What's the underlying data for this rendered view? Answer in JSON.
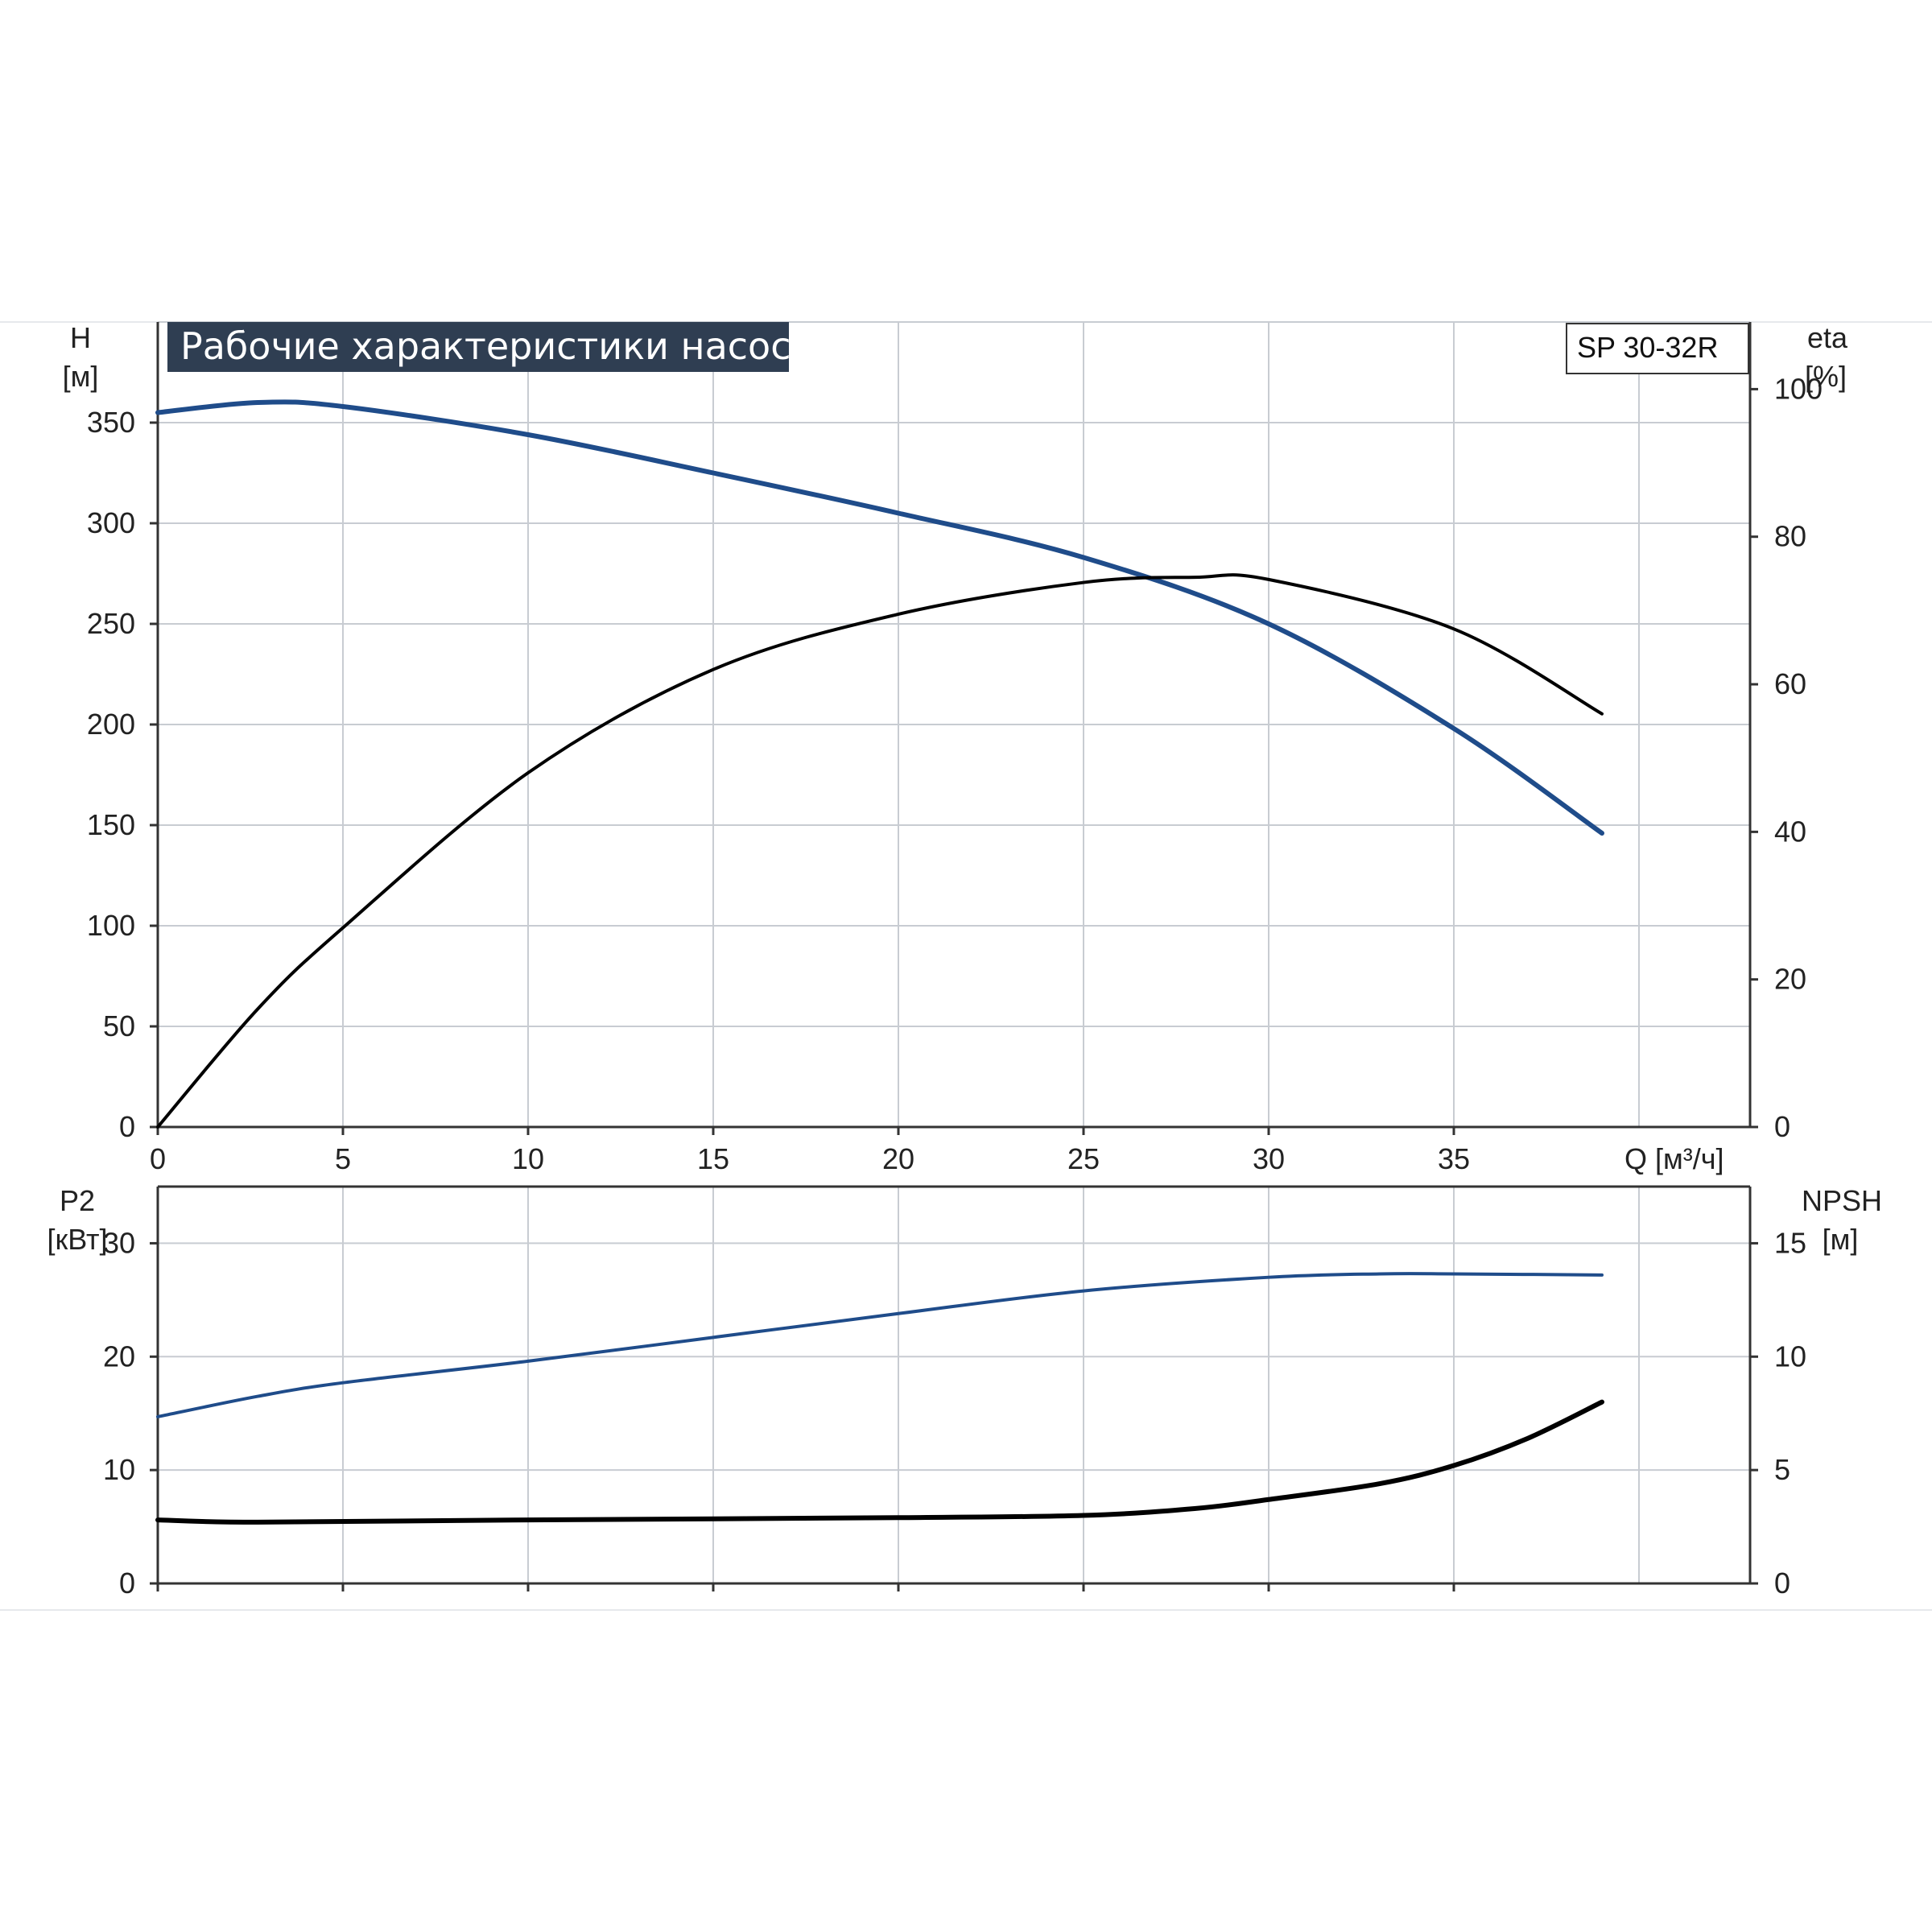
{
  "title": "Рабочие характеристики насоса",
  "model": "SP 30-32R",
  "colors": {
    "title_bg": "#2f3e52",
    "grid": "#c8ccd2",
    "axis": "#333333",
    "blue_curve": "#1f4c8a",
    "black_curve": "#000000"
  },
  "chart_data": [
    {
      "type": "line",
      "panel": "top",
      "x_axis": {
        "label": "Q [м³/ч]",
        "range": [
          0,
          43
        ],
        "ticks": [
          0,
          5,
          10,
          15,
          20,
          25,
          30,
          35
        ],
        "tick_labels": [
          "0",
          "5",
          "10",
          "15",
          "20",
          "25",
          "30",
          "35"
        ]
      },
      "y_left": {
        "label": "H",
        "unit": "[м]",
        "range": [
          0,
          400
        ],
        "ticks": [
          0,
          50,
          100,
          150,
          200,
          250,
          300,
          350
        ],
        "tick_labels": [
          "0",
          "50",
          "100",
          "150",
          "200",
          "250",
          "300",
          "350"
        ]
      },
      "y_right": {
        "label": "eta",
        "unit": "[%]",
        "range": [
          0,
          109.1
        ],
        "ticks": [
          0,
          20,
          40,
          60,
          80,
          100
        ],
        "tick_labels": [
          "0",
          "20",
          "40",
          "60",
          "80",
          "100"
        ]
      },
      "grid": true,
      "series": [
        {
          "key": "H",
          "axis": "left",
          "color": "#1f4c8a",
          "x": [
            0,
            2.7,
            5,
            10,
            15,
            20,
            25,
            30,
            35,
            39
          ],
          "y": [
            355,
            360,
            358,
            344,
            325,
            305,
            283,
            250,
            198,
            146
          ]
        },
        {
          "key": "eta",
          "axis": "right",
          "color": "#000000",
          "x": [
            0,
            2.7,
            5,
            10,
            15,
            20,
            25,
            28,
            30,
            35,
            39
          ],
          "y": [
            0,
            16,
            27,
            48,
            62,
            69.5,
            73.8,
            74.5,
            74.2,
            67.5,
            56
          ]
        }
      ]
    },
    {
      "type": "line",
      "panel": "bottom",
      "x_axis": {
        "range": [
          0,
          43
        ],
        "ticks": [
          0,
          5,
          10,
          15,
          20,
          25,
          30,
          35
        ]
      },
      "y_left": {
        "label": "P2",
        "unit": "[кВт]",
        "range": [
          0,
          35
        ],
        "ticks": [
          0,
          10,
          20,
          30
        ],
        "tick_labels": [
          "0",
          "10",
          "20",
          "30"
        ]
      },
      "y_right": {
        "label": "NPSH",
        "unit": "[м]",
        "range": [
          0,
          17.5
        ],
        "ticks": [
          0,
          5,
          10,
          15
        ],
        "tick_labels": [
          "0",
          "5",
          "10",
          "15"
        ]
      },
      "grid": true,
      "series": [
        {
          "key": "P2",
          "axis": "left",
          "color": "#1f4c8a",
          "x": [
            0,
            2.7,
            5,
            10,
            15,
            20,
            25,
            30,
            33,
            35,
            39
          ],
          "y": [
            14.7,
            16.5,
            17.7,
            19.6,
            21.7,
            23.8,
            25.8,
            27.0,
            27.3,
            27.3,
            27.2
          ]
        },
        {
          "key": "NPSH",
          "axis": "right",
          "color": "#000000",
          "x": [
            0,
            2.7,
            10,
            20,
            25,
            28,
            30,
            33,
            35,
            37,
            39
          ],
          "y": [
            2.8,
            2.7,
            2.8,
            2.9,
            3.0,
            3.3,
            3.7,
            4.4,
            5.2,
            6.4,
            8.0
          ]
        }
      ]
    }
  ]
}
